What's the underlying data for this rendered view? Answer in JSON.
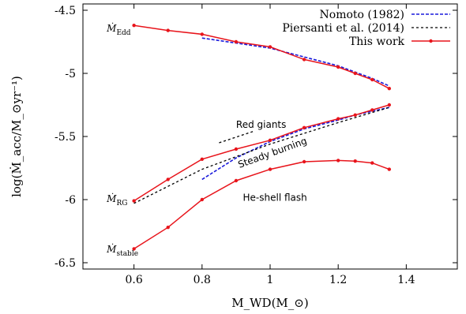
{
  "chart_data": {
    "type": "line",
    "xlabel": "M_WD(M_⊙)",
    "ylabel": "log(Ṁ_acc/M_⊙yr⁻¹)",
    "xlim": [
      0.45,
      1.55
    ],
    "ylim": [
      -6.55,
      -4.45
    ],
    "x_ticks": [
      0.6,
      0.8,
      1.0,
      1.2,
      1.4
    ],
    "x_tick_labels": [
      "0.6",
      "0.8",
      "1",
      "1.2",
      "1.4"
    ],
    "y_ticks": [
      -6.5,
      -6.0,
      -5.5,
      -5.0,
      -4.5
    ],
    "y_tick_labels": [
      "-6.5",
      "-6",
      "-5.5",
      "-5",
      "-4.5"
    ],
    "legend_position": "top-right",
    "series": [
      {
        "name": "Nomoto (1982)",
        "style": "dashed",
        "color": "#1a1adb",
        "segments": [
          {
            "x": [
              0.8,
              0.9,
              1.0,
              1.1,
              1.2,
              1.25,
              1.3,
              1.35
            ],
            "y": [
              -4.72,
              -4.76,
              -4.8,
              -4.87,
              -4.94,
              -4.99,
              -5.04,
              -5.1
            ]
          },
          {
            "x": [
              0.8,
              0.9,
              1.0,
              1.1,
              1.2,
              1.25,
              1.3,
              1.35
            ],
            "y": [
              -5.84,
              -5.67,
              -5.54,
              -5.44,
              -5.37,
              -5.33,
              -5.3,
              -5.27
            ]
          }
        ]
      },
      {
        "name": "Piersanti et al. (2014)",
        "style": "dashed",
        "color": "#000000",
        "segments": [
          {
            "x": [
              0.6,
              0.8,
              1.0,
              1.2,
              1.35
            ],
            "y": [
              -6.03,
              -5.76,
              -5.56,
              -5.39,
              -5.27
            ]
          },
          {
            "x": [
              0.85,
              0.95
            ],
            "y": [
              -5.55,
              -5.46
            ]
          }
        ]
      },
      {
        "name": "This work",
        "style": "solid-points",
        "color": "#e8141b",
        "segments": [
          {
            "x": [
              0.6,
              0.7,
              0.8,
              0.9,
              1.0,
              1.1,
              1.2,
              1.25,
              1.3,
              1.35
            ],
            "y": [
              -4.62,
              -4.66,
              -4.69,
              -4.75,
              -4.79,
              -4.89,
              -4.95,
              -5.0,
              -5.05,
              -5.12
            ]
          },
          {
            "x": [
              0.6,
              0.7,
              0.8,
              0.9,
              1.0,
              1.1,
              1.2,
              1.25,
              1.3,
              1.35
            ],
            "y": [
              -6.01,
              -5.84,
              -5.68,
              -5.6,
              -5.53,
              -5.43,
              -5.36,
              -5.33,
              -5.29,
              -5.25
            ]
          },
          {
            "x": [
              0.6,
              0.7,
              0.8,
              0.9,
              1.0,
              1.1,
              1.2,
              1.25,
              1.3,
              1.35
            ],
            "y": [
              -6.39,
              -6.22,
              -6.0,
              -5.85,
              -5.76,
              -5.7,
              -5.69,
              -5.695,
              -5.71,
              -5.76
            ]
          }
        ]
      }
    ],
    "annotations": [
      {
        "text": "Red giants",
        "x": 0.9,
        "y": -5.43
      },
      {
        "text": "Steady burning",
        "x": 0.91,
        "y": -5.75,
        "angle": -20
      },
      {
        "text": "He-shell flash",
        "x": 0.92,
        "y": -6.01
      }
    ],
    "curve_labels": [
      {
        "main": "Ṁ",
        "sub": "Edd",
        "x": 0.52,
        "y": -4.67
      },
      {
        "main": "Ṁ",
        "sub": "RG",
        "x": 0.52,
        "y": -6.02
      },
      {
        "main": "Ṁ",
        "sub": "stable",
        "x": 0.52,
        "y": -6.42
      }
    ]
  }
}
